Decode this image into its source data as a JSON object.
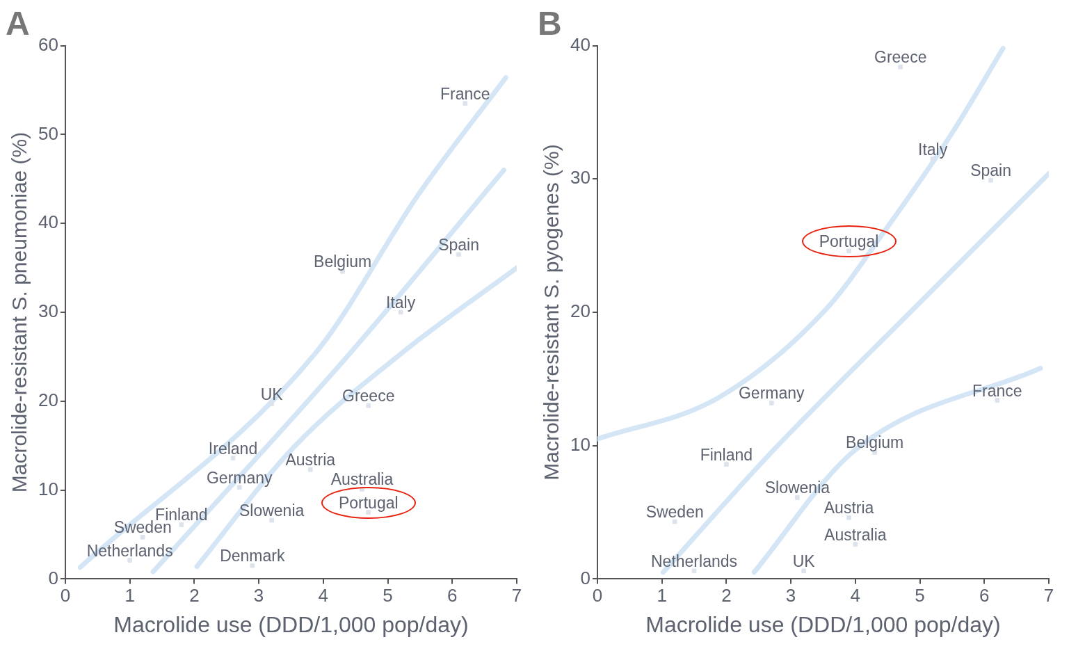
{
  "chart_data": [
    {
      "type": "scatter",
      "title": "A",
      "xlabel": "Macrolide use (DDD/1,000 pop/day)",
      "ylabel": "Macrolide-resistant S. pneumoniae (%)",
      "xlim": [
        0,
        7
      ],
      "ylim": [
        0,
        60
      ],
      "xticks": [
        0,
        1,
        2,
        3,
        4,
        5,
        6,
        7
      ],
      "yticks": [
        0,
        10,
        20,
        30,
        40,
        50,
        60
      ],
      "marker": "square",
      "series": [
        {
          "name": "France",
          "color": "#dde3ec",
          "x": [
            6.2
          ],
          "values": [
            53.5
          ]
        },
        {
          "name": "Spain",
          "color": "#dde3ec",
          "x": [
            6.1
          ],
          "values": [
            36.5
          ]
        },
        {
          "name": "Belgium",
          "color": "#dde3ec",
          "x": [
            4.3
          ],
          "values": [
            34.6
          ]
        },
        {
          "name": "Italy",
          "color": "#dde3ec",
          "x": [
            5.2
          ],
          "values": [
            30.0
          ]
        },
        {
          "name": "UK",
          "color": "#dde3ec",
          "x": [
            3.2
          ],
          "values": [
            19.7
          ]
        },
        {
          "name": "Greece",
          "color": "#dde3ec",
          "x": [
            4.7
          ],
          "values": [
            19.5
          ]
        },
        {
          "name": "Ireland",
          "color": "#dde3ec",
          "x": [
            2.6
          ],
          "values": [
            13.6
          ]
        },
        {
          "name": "Austria",
          "color": "#dde3ec",
          "x": [
            3.8
          ],
          "values": [
            12.3
          ]
        },
        {
          "name": "Germany",
          "color": "#dde3ec",
          "x": [
            2.7
          ],
          "values": [
            10.3
          ]
        },
        {
          "name": "Australia",
          "color": "#dde3ec",
          "x": [
            4.6
          ],
          "values": [
            10.1
          ]
        },
        {
          "name": "Portugal",
          "color": "#dde3ec",
          "x": [
            4.7
          ],
          "values": [
            7.5
          ]
        },
        {
          "name": "Slowenia",
          "color": "#dde3ec",
          "x": [
            3.2
          ],
          "values": [
            6.6
          ]
        },
        {
          "name": "Finland",
          "color": "#dde3ec",
          "x": [
            1.8
          ],
          "values": [
            6.1
          ]
        },
        {
          "name": "Sweden",
          "color": "#dde3ec",
          "x": [
            1.2
          ],
          "values": [
            4.7
          ]
        },
        {
          "name": "Netherlands",
          "color": "#dde3ec",
          "x": [
            1.0
          ],
          "values": [
            2.1
          ]
        },
        {
          "name": "Denmark",
          "color": "#dde3ec",
          "x": [
            2.9
          ],
          "values": [
            1.5
          ]
        },
        {
          "type": "line",
          "marker": "none",
          "color": "#d4e5f6",
          "x": [
            0.23,
            3.9,
            5.48,
            6.83
          ],
          "values": [
            1.3,
            25.6,
            43.3,
            56.4
          ]
        },
        {
          "type": "line",
          "marker": "none",
          "color": "#d4e5f6",
          "x": [
            1.36,
            4.44,
            6.8
          ],
          "values": [
            0.8,
            25.6,
            46
          ]
        },
        {
          "type": "line",
          "marker": "none",
          "color": "#d4e5f6",
          "x": [
            2.04,
            3.54,
            5.25,
            7
          ],
          "values": [
            1.4,
            14.8,
            25.6,
            35
          ]
        }
      ]
    },
    {
      "type": "scatter",
      "title": "B",
      "xlabel": "Macrolide use (DDD/1,000 pop/day)",
      "ylabel": "Macrolide-resistant S. pyogenes (%)",
      "xlim": [
        0,
        7
      ],
      "ylim": [
        0,
        40
      ],
      "xticks": [
        0,
        1,
        2,
        3,
        4,
        5,
        6,
        7
      ],
      "yticks": [
        0,
        10,
        20,
        30,
        40
      ],
      "marker": "square",
      "series": [
        {
          "name": "Greece",
          "color": "#dde3ec",
          "x": [
            4.7
          ],
          "values": [
            38.4
          ]
        },
        {
          "name": "Italy",
          "color": "#dde3ec",
          "x": [
            5.2
          ],
          "values": [
            31.5
          ]
        },
        {
          "name": "Spain",
          "color": "#dde3ec",
          "x": [
            6.1
          ],
          "values": [
            29.9
          ]
        },
        {
          "name": "Portugal",
          "color": "#dde3ec",
          "x": [
            3.9
          ],
          "values": [
            24.6
          ]
        },
        {
          "name": "Germany",
          "color": "#dde3ec",
          "x": [
            2.7
          ],
          "values": [
            13.2
          ]
        },
        {
          "name": "France",
          "color": "#dde3ec",
          "x": [
            6.2
          ],
          "values": [
            13.4
          ]
        },
        {
          "name": "Belgium",
          "color": "#dde3ec",
          "x": [
            4.3
          ],
          "values": [
            9.5
          ]
        },
        {
          "name": "Finland",
          "color": "#dde3ec",
          "x": [
            2.0
          ],
          "values": [
            8.6
          ]
        },
        {
          "name": "Slowenia",
          "color": "#dde3ec",
          "x": [
            3.1
          ],
          "values": [
            6.1
          ]
        },
        {
          "name": "Sweden",
          "color": "#dde3ec",
          "x": [
            1.2
          ],
          "values": [
            4.3
          ]
        },
        {
          "name": "Austria",
          "color": "#dde3ec",
          "x": [
            3.9
          ],
          "values": [
            4.6
          ]
        },
        {
          "name": "Australia",
          "color": "#dde3ec",
          "x": [
            4.0
          ],
          "values": [
            2.6
          ]
        },
        {
          "name": "Netherlands",
          "color": "#dde3ec",
          "x": [
            1.5
          ],
          "values": [
            0.6
          ]
        },
        {
          "name": "UK",
          "color": "#dde3ec",
          "x": [
            3.2
          ],
          "values": [
            0.6
          ]
        },
        {
          "type": "line",
          "marker": "none",
          "color": "#d4e5f6",
          "x": [
            0,
            1.88,
            3.54,
            4.44,
            5.52,
            6.29
          ],
          "values": [
            10.5,
            13.6,
            20.2,
            26.0,
            33.6,
            39.8
          ]
        },
        {
          "type": "line",
          "marker": "none",
          "color": "#d4e5f6",
          "x": [
            1.02,
            2.64,
            4.89,
            7
          ],
          "values": [
            0.5,
            9.2,
            20.2,
            30.4
          ]
        },
        {
          "type": "line",
          "marker": "none",
          "color": "#d4e5f6",
          "x": [
            2.43,
            3.98,
            6.87
          ],
          "values": [
            0.5,
            9.6,
            15.8
          ]
        }
      ]
    }
  ]
}
